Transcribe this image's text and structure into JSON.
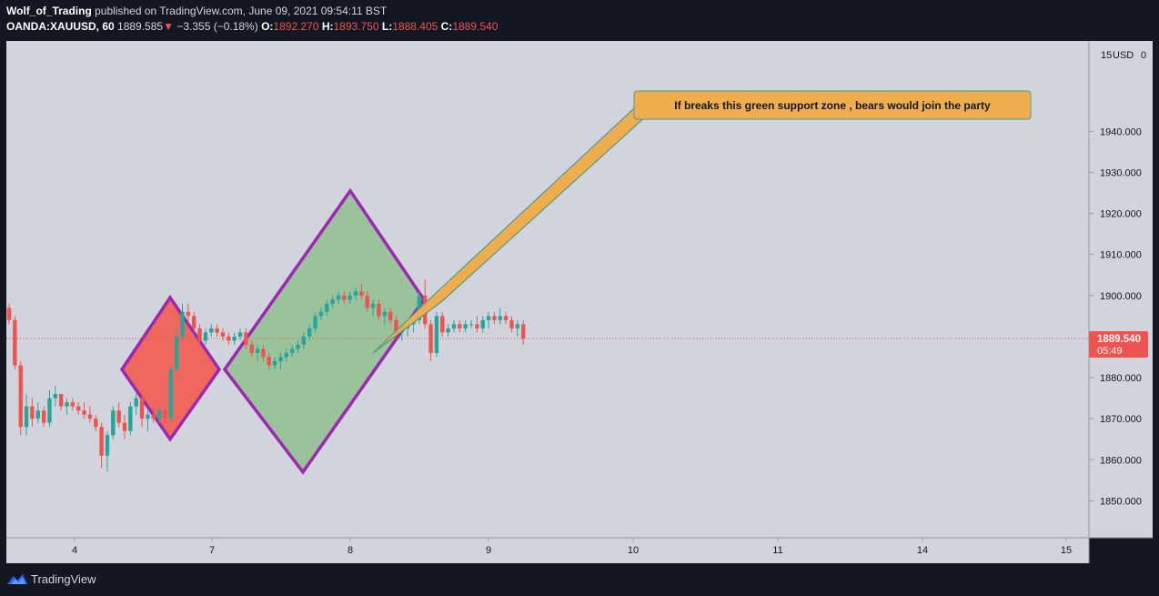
{
  "header": {
    "author": "Wolf_of_Trading",
    "published_text": "published on TradingView.com, June 09, 2021 09:54:11 BST",
    "symbol": "OANDA:XAUUSD, 60",
    "last": "1889.585",
    "change": "−3.355 (−0.18%)",
    "o_label": "O:",
    "o": "1892.270",
    "h_label": "H:",
    "h": "1893.750",
    "l_label": "L:",
    "l": "1888.405",
    "c_label": "C:",
    "c": "1889.540",
    "down_arrow": "▼"
  },
  "footer": {
    "brand": "TradingView",
    "logo_icon": "tradingview-logo-icon"
  },
  "colors": {
    "background": "#131722",
    "plot_bg": "#d1d4dc",
    "up": "#26a69a",
    "down": "#ef5350",
    "diamond_stroke": "#9c27b0",
    "red_fill": "#f0675d",
    "green_fill": "#9ac39c",
    "callout_fill": "#f0ad4e",
    "callout_stroke": "#4a9c8c"
  },
  "chart_data": {
    "type": "candlestick",
    "price_axis_unit": "USD",
    "ylim": [
      1841,
      1962
    ],
    "yticks": [
      "1850.000",
      "1860.000",
      "1870.000",
      "1880.000",
      "1890.000",
      "1900.000",
      "1910.000",
      "1920.000",
      "1930.000",
      "1940.000"
    ],
    "xticks": [
      "4",
      "7",
      "8",
      "9",
      "10",
      "11",
      "14",
      "15"
    ],
    "last_price": "1889.540",
    "countdown": "05:49",
    "annotation": "If breaks this green support zone , bears would join the party",
    "candles": [
      [
        1897,
        1898,
        1893,
        1894
      ],
      [
        1894,
        1895,
        1882,
        1883
      ],
      [
        1883,
        1884,
        1866,
        1868
      ],
      [
        1868,
        1876,
        1866,
        1873
      ],
      [
        1873,
        1875,
        1868,
        1870
      ],
      [
        1870,
        1874,
        1869,
        1872
      ],
      [
        1872,
        1873,
        1868,
        1869
      ],
      [
        1869,
        1877,
        1868,
        1875
      ],
      [
        1875,
        1878,
        1873,
        1876
      ],
      [
        1876,
        1876,
        1872,
        1873
      ],
      [
        1873,
        1875,
        1871,
        1874
      ],
      [
        1874,
        1875,
        1872,
        1873
      ],
      [
        1873,
        1874,
        1871,
        1872
      ],
      [
        1872,
        1874,
        1870,
        1871
      ],
      [
        1871,
        1873,
        1869,
        1870
      ],
      [
        1870,
        1871,
        1867,
        1868
      ],
      [
        1868,
        1869,
        1858,
        1861
      ],
      [
        1861,
        1867,
        1857,
        1866
      ],
      [
        1866,
        1873,
        1865,
        1872
      ],
      [
        1872,
        1874,
        1868,
        1869
      ],
      [
        1869,
        1871,
        1865,
        1867
      ],
      [
        1867,
        1874,
        1866,
        1873
      ],
      [
        1873,
        1876,
        1871,
        1875
      ],
      [
        1875,
        1877,
        1868,
        1870
      ],
      [
        1870,
        1872,
        1867,
        1871
      ],
      [
        1871,
        1873,
        1869,
        1870
      ],
      [
        1870,
        1873,
        1869,
        1872
      ],
      [
        1872,
        1873,
        1869,
        1870
      ],
      [
        1870,
        1883,
        1869,
        1882
      ],
      [
        1882,
        1892,
        1881,
        1890
      ],
      [
        1890,
        1898,
        1889,
        1896
      ],
      [
        1896,
        1898,
        1893,
        1895
      ],
      [
        1895,
        1896,
        1891,
        1892
      ],
      [
        1892,
        1893,
        1888,
        1889
      ],
      [
        1889,
        1892,
        1888,
        1891
      ],
      [
        1891,
        1893,
        1890,
        1892
      ],
      [
        1892,
        1893,
        1890,
        1891
      ],
      [
        1891,
        1892,
        1889,
        1890
      ],
      [
        1890,
        1891,
        1888,
        1889
      ],
      [
        1889,
        1891,
        1888,
        1890
      ],
      [
        1890,
        1892,
        1889,
        1891
      ],
      [
        1891,
        1892,
        1887,
        1888
      ],
      [
        1888,
        1889,
        1885,
        1886
      ],
      [
        1886,
        1888,
        1884,
        1887
      ],
      [
        1887,
        1888,
        1884,
        1885
      ],
      [
        1885,
        1886,
        1882,
        1883
      ],
      [
        1883,
        1885,
        1882,
        1884
      ],
      [
        1884,
        1886,
        1882,
        1885
      ],
      [
        1885,
        1887,
        1884,
        1886
      ],
      [
        1886,
        1888,
        1885,
        1887
      ],
      [
        1887,
        1889,
        1886,
        1888
      ],
      [
        1888,
        1891,
        1887,
        1890
      ],
      [
        1890,
        1893,
        1889,
        1892
      ],
      [
        1892,
        1896,
        1891,
        1895
      ],
      [
        1895,
        1897,
        1894,
        1896
      ],
      [
        1896,
        1899,
        1895,
        1898
      ],
      [
        1898,
        1900,
        1897,
        1899
      ],
      [
        1899,
        1901,
        1898,
        1900
      ],
      [
        1900,
        1901,
        1898,
        1899
      ],
      [
        1899,
        1901,
        1898,
        1900
      ],
      [
        1900,
        1902,
        1899,
        1901
      ],
      [
        1901,
        1903,
        1899,
        1900
      ],
      [
        1900,
        1901,
        1896,
        1897
      ],
      [
        1897,
        1899,
        1895,
        1898
      ],
      [
        1898,
        1899,
        1894,
        1895
      ],
      [
        1895,
        1897,
        1893,
        1896
      ],
      [
        1896,
        1897,
        1893,
        1894
      ],
      [
        1894,
        1895,
        1890,
        1891
      ],
      [
        1891,
        1893,
        1889,
        1892
      ],
      [
        1892,
        1894,
        1890,
        1893
      ],
      [
        1893,
        1895,
        1891,
        1894
      ],
      [
        1894,
        1901,
        1893,
        1900
      ],
      [
        1900,
        1904,
        1892,
        1893
      ],
      [
        1893,
        1894,
        1884,
        1886
      ],
      [
        1886,
        1896,
        1885,
        1895
      ],
      [
        1895,
        1896,
        1890,
        1891
      ],
      [
        1891,
        1893,
        1890,
        1892
      ],
      [
        1892,
        1894,
        1891,
        1893
      ],
      [
        1893,
        1894,
        1891,
        1892
      ],
      [
        1892,
        1894,
        1891,
        1893
      ],
      [
        1893,
        1894,
        1892,
        1893
      ],
      [
        1893,
        1895,
        1891,
        1892
      ],
      [
        1892,
        1895,
        1891,
        1894
      ],
      [
        1894,
        1896,
        1892,
        1895
      ],
      [
        1895,
        1896,
        1893,
        1894
      ],
      [
        1894,
        1897,
        1893,
        1895
      ],
      [
        1895,
        1896,
        1893,
        1894
      ],
      [
        1894,
        1895,
        1891,
        1892
      ],
      [
        1892,
        1894,
        1890,
        1893
      ],
      [
        1893,
        1894,
        1888,
        1889.5
      ]
    ]
  }
}
